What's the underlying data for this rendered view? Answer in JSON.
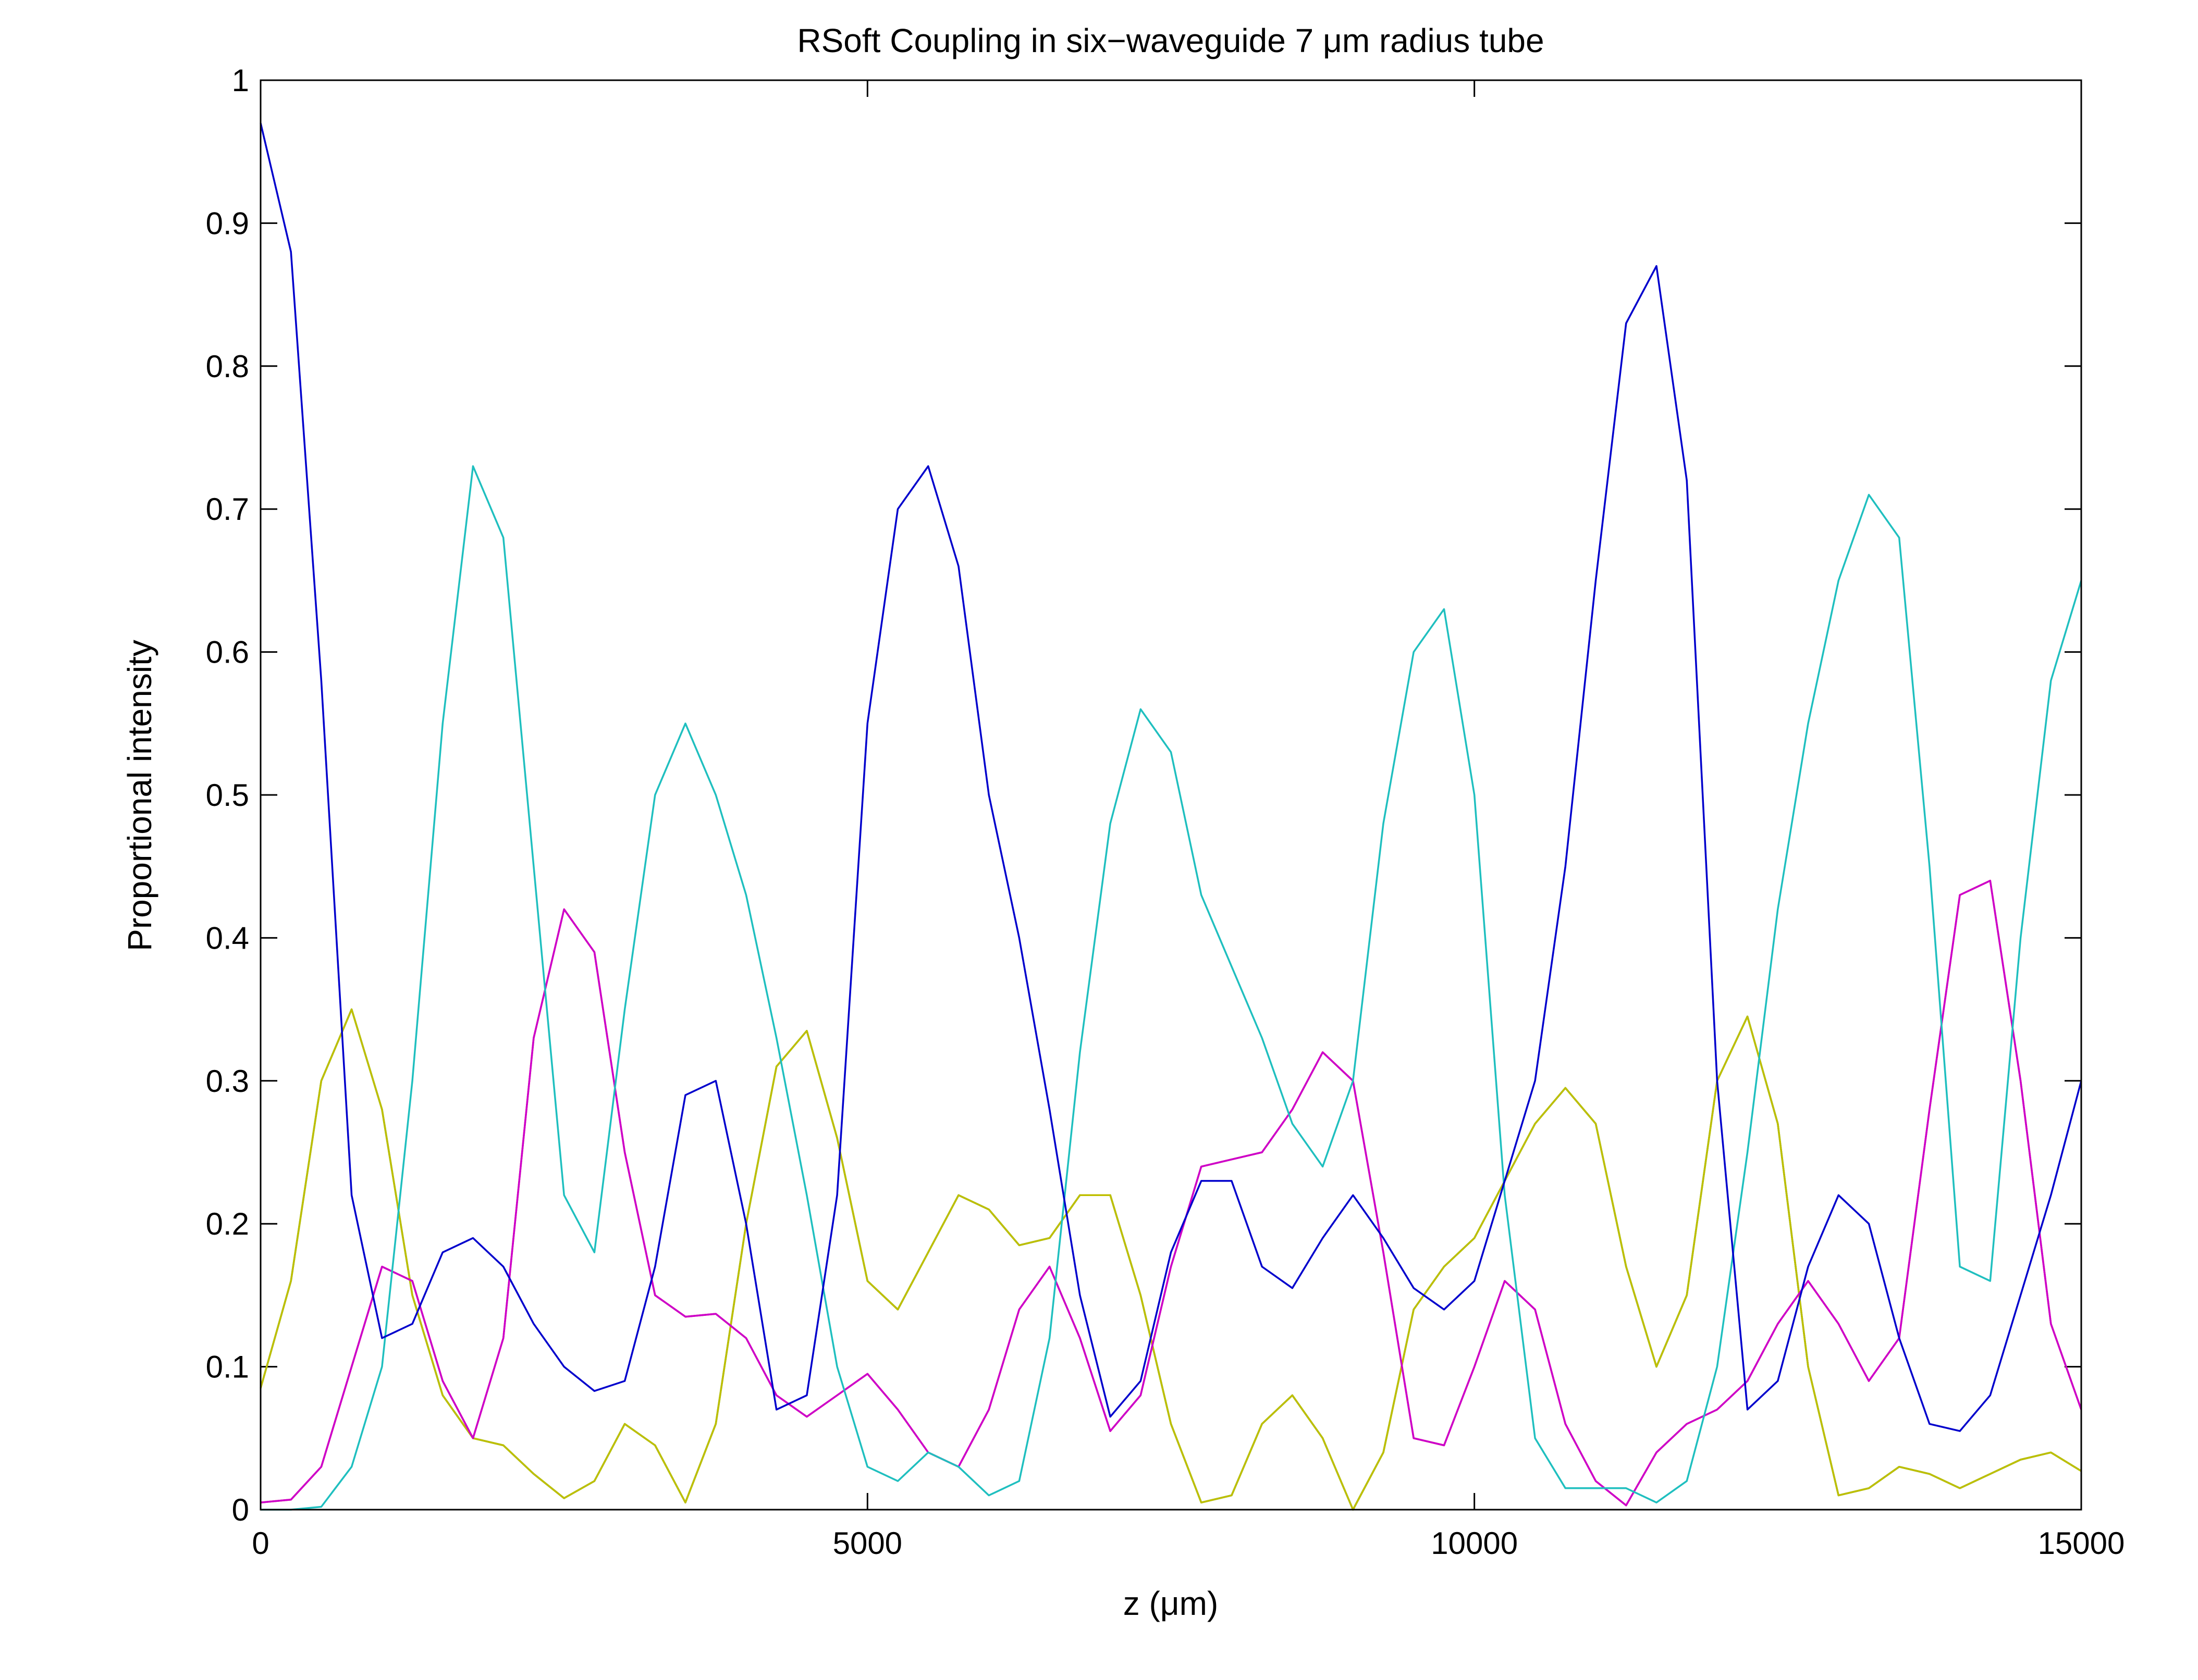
{
  "chart_data": {
    "type": "line",
    "title": "RSoft Coupling in six−waveguide 7 μm radius tube",
    "x_label": "z (μm)",
    "y_label": "Proportional intensity",
    "xlim": [
      0,
      15000
    ],
    "xticks": [
      0,
      5000,
      10000,
      15000
    ],
    "ylim": [
      0,
      1
    ],
    "yticks": [
      0,
      0.1,
      0.2,
      0.3,
      0.4,
      0.5,
      0.6,
      0.7,
      0.8,
      0.9,
      1
    ],
    "grid": false,
    "x": [
      0,
      250,
      500,
      750,
      1000,
      1250,
      1500,
      1750,
      2000,
      2250,
      2500,
      2750,
      3000,
      3250,
      3500,
      3750,
      4000,
      4250,
      4500,
      4750,
      5000,
      5250,
      5500,
      5750,
      6000,
      6250,
      6500,
      6750,
      7000,
      7250,
      7500,
      7750,
      8000,
      8250,
      8500,
      8750,
      9000,
      9250,
      9500,
      9750,
      10000,
      10250,
      10500,
      10750,
      11000,
      11250,
      11500,
      11750,
      12000,
      12250,
      12500,
      12750,
      13000,
      13250,
      13500,
      13750,
      14000,
      14250,
      14500,
      14750,
      15000
    ],
    "series": [
      {
        "color": "#008000",
        "values": [
          0.085,
          0.16,
          0.3,
          0.35,
          0.28,
          0.15,
          0.08,
          0.05,
          0.045,
          0.025,
          0.008,
          0.02,
          0.06,
          0.045,
          0.005,
          0.06,
          0.2,
          0.31,
          0.335,
          0.26,
          0.16,
          0.14,
          0.18,
          0.22,
          0.21,
          0.185,
          0.19,
          0.22,
          0.22,
          0.15,
          0.06,
          0.005,
          0.01,
          0.06,
          0.08,
          0.05,
          0,
          0.04,
          0.14,
          0.17,
          0.19,
          0.23,
          0.27,
          0.295,
          0.27,
          0.17,
          0.1,
          0.15,
          0.3,
          0.345,
          0.27,
          0.1,
          0.01,
          0.015,
          0.03,
          0.025,
          0.015,
          0.025,
          0.035,
          0.04,
          0.027
        ]
      },
      {
        "color": "#bfbf00",
        "values": [
          0.085,
          0.16,
          0.3,
          0.35,
          0.28,
          0.15,
          0.08,
          0.05,
          0.045,
          0.025,
          0.008,
          0.02,
          0.06,
          0.045,
          0.005,
          0.06,
          0.2,
          0.31,
          0.335,
          0.26,
          0.16,
          0.14,
          0.18,
          0.22,
          0.21,
          0.185,
          0.19,
          0.22,
          0.22,
          0.15,
          0.06,
          0.005,
          0.01,
          0.06,
          0.08,
          0.05,
          0,
          0.04,
          0.14,
          0.17,
          0.19,
          0.23,
          0.27,
          0.295,
          0.27,
          0.17,
          0.1,
          0.15,
          0.3,
          0.345,
          0.27,
          0.1,
          0.01,
          0.015,
          0.03,
          0.025,
          0.015,
          0.025,
          0.035,
          0.04,
          0.027
        ]
      },
      {
        "color": "#ff0000",
        "values": [
          0.005,
          0.007,
          0.03,
          0.1,
          0.17,
          0.16,
          0.09,
          0.05,
          0.12,
          0.33,
          0.42,
          0.39,
          0.25,
          0.15,
          0.135,
          0.137,
          0.12,
          0.08,
          0.065,
          0.08,
          0.095,
          0.07,
          0.04,
          0.03,
          0.07,
          0.14,
          0.17,
          0.12,
          0.055,
          0.08,
          0.17,
          0.24,
          0.245,
          0.25,
          0.28,
          0.32,
          0.3,
          0.18,
          0.05,
          0.045,
          0.1,
          0.16,
          0.14,
          0.06,
          0.02,
          0.003,
          0.04,
          0.06,
          0.07,
          0.09,
          0.13,
          0.16,
          0.13,
          0.09,
          0.12,
          0.28,
          0.43,
          0.44,
          0.3,
          0.13,
          0.07
        ]
      },
      {
        "color": "#cc00cc",
        "values": [
          0.005,
          0.007,
          0.03,
          0.1,
          0.17,
          0.16,
          0.09,
          0.05,
          0.12,
          0.33,
          0.42,
          0.39,
          0.25,
          0.15,
          0.135,
          0.137,
          0.12,
          0.08,
          0.065,
          0.08,
          0.095,
          0.07,
          0.04,
          0.03,
          0.07,
          0.14,
          0.17,
          0.12,
          0.055,
          0.08,
          0.17,
          0.24,
          0.245,
          0.25,
          0.28,
          0.32,
          0.3,
          0.18,
          0.05,
          0.045,
          0.1,
          0.16,
          0.14,
          0.06,
          0.02,
          0.003,
          0.04,
          0.06,
          0.07,
          0.09,
          0.13,
          0.16,
          0.13,
          0.09,
          0.12,
          0.28,
          0.43,
          0.44,
          0.3,
          0.13,
          0.07
        ]
      },
      {
        "color": "#1fbfbf",
        "values": [
          0,
          0,
          0.002,
          0.03,
          0.1,
          0.3,
          0.55,
          0.73,
          0.68,
          0.45,
          0.22,
          0.18,
          0.35,
          0.5,
          0.55,
          0.5,
          0.43,
          0.33,
          0.22,
          0.1,
          0.03,
          0.02,
          0.04,
          0.03,
          0.01,
          0.02,
          0.12,
          0.32,
          0.48,
          0.56,
          0.53,
          0.43,
          0.38,
          0.33,
          0.27,
          0.24,
          0.3,
          0.48,
          0.6,
          0.63,
          0.5,
          0.22,
          0.05,
          0.015,
          0.015,
          0.015,
          0.005,
          0.02,
          0.1,
          0.25,
          0.42,
          0.55,
          0.65,
          0.71,
          0.68,
          0.45,
          0.17,
          0.16,
          0.4,
          0.58,
          0.65
        ]
      },
      {
        "color": "#0000cc",
        "values": [
          0.97,
          0.88,
          0.58,
          0.22,
          0.12,
          0.13,
          0.18,
          0.19,
          0.17,
          0.13,
          0.1,
          0.083,
          0.09,
          0.17,
          0.29,
          0.3,
          0.2,
          0.07,
          0.08,
          0.22,
          0.55,
          0.7,
          0.73,
          0.66,
          0.5,
          0.4,
          0.28,
          0.15,
          0.065,
          0.09,
          0.18,
          0.23,
          0.23,
          0.17,
          0.155,
          0.19,
          0.22,
          0.19,
          0.155,
          0.14,
          0.16,
          0.23,
          0.3,
          0.45,
          0.65,
          0.83,
          0.87,
          0.72,
          0.3,
          0.07,
          0.09,
          0.17,
          0.22,
          0.2,
          0.12,
          0.06,
          0.055,
          0.08,
          0.15,
          0.22,
          0.3
        ]
      }
    ]
  }
}
